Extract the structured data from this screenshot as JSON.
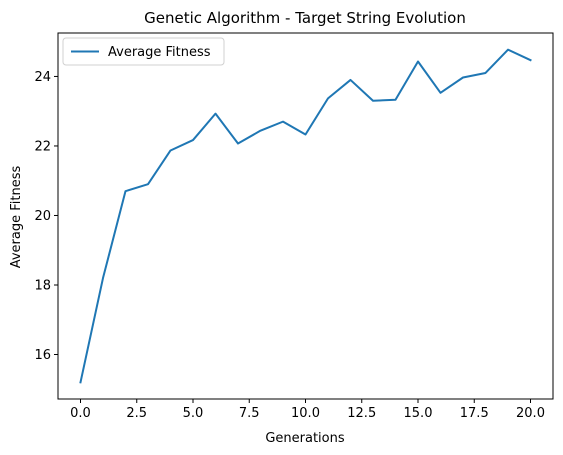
{
  "chart_data": {
    "type": "line",
    "title": "Genetic Algorithm - Target String Evolution",
    "xlabel": "Generations",
    "ylabel": "Average Fitness",
    "x": [
      0,
      1,
      2,
      3,
      4,
      5,
      6,
      7,
      8,
      9,
      10,
      11,
      12,
      13,
      14,
      15,
      16,
      17,
      18,
      19,
      20
    ],
    "series": [
      {
        "name": "Average Fitness",
        "color": "#1f77b4",
        "values": [
          15.2,
          18.2,
          20.7,
          20.9,
          21.87,
          22.17,
          22.93,
          22.07,
          22.44,
          22.7,
          22.33,
          23.37,
          23.9,
          23.3,
          23.33,
          24.43,
          23.53,
          23.97,
          24.1,
          24.77,
          24.47
        ]
      }
    ],
    "xlim": [
      -1.0,
      21.0
    ],
    "ylim": [
      14.72,
      25.25
    ],
    "xticks": [
      0,
      2.5,
      5,
      7.5,
      10,
      12.5,
      15,
      17.5,
      20
    ],
    "xtick_labels": [
      "0.0",
      "2.5",
      "5.0",
      "7.5",
      "10.0",
      "12.5",
      "15.0",
      "17.5",
      "20.0"
    ],
    "yticks": [
      16,
      18,
      20,
      22,
      24
    ],
    "ytick_labels": [
      "16",
      "18",
      "20",
      "22",
      "24"
    ],
    "grid": false,
    "legend": "top-left"
  }
}
